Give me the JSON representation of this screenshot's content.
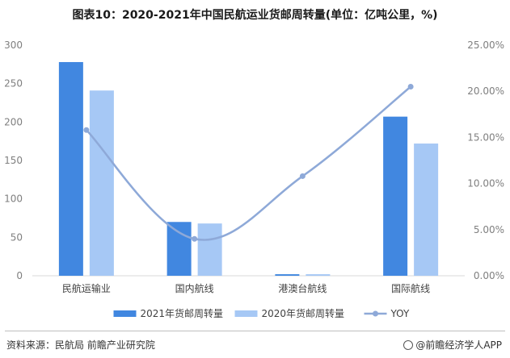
{
  "title": "图表10：2020-2021年中国民航运业货邮周转量(单位：亿吨公里，%)",
  "source": "资料来源：民航局 前瞻产业研究院",
  "brand": "@前瞻经济学人APP",
  "chart_data": {
    "type": "bar",
    "categories": [
      "民航运输业",
      "国内航线",
      "港澳台航线",
      "国际航线"
    ],
    "series": [
      {
        "name": "2021年货邮周转量",
        "type": "bar",
        "axis": "left",
        "color": "#4187e0",
        "values": [
          278,
          70,
          2,
          207
        ]
      },
      {
        "name": "2020年货邮周转量",
        "type": "bar",
        "axis": "left",
        "color": "#a6c8f5",
        "values": [
          241,
          68,
          2,
          172
        ]
      },
      {
        "name": "YOY",
        "type": "line",
        "axis": "right",
        "color": "#8ea9d8",
        "values": [
          15.8,
          4.0,
          10.8,
          20.5
        ]
      }
    ],
    "ylim_left": [
      0,
      300
    ],
    "yticks_left": [
      "0",
      "50",
      "100",
      "150",
      "200",
      "250",
      "300"
    ],
    "ylim_right": [
      0,
      25
    ],
    "yticks_right": [
      "0.00%",
      "5.00%",
      "10.00%",
      "15.00%",
      "20.00%",
      "25.00%"
    ],
    "legend_position": "bottom",
    "grid": false
  }
}
